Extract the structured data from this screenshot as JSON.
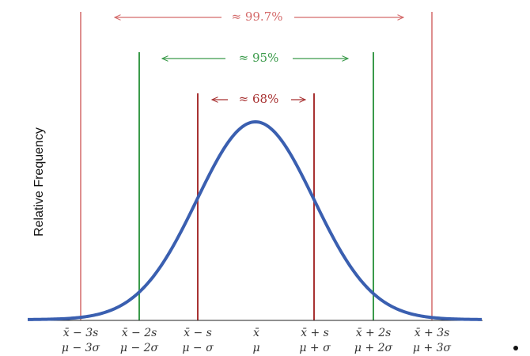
{
  "annotations": {
    "three": "≈ 99.7%",
    "two": "≈ 95%",
    "one": "≈ 68%"
  },
  "y_axis_label": "Relative Frequency",
  "x_labels": [
    {
      "sample": "x̄ − 3s",
      "population": "μ − 3σ"
    },
    {
      "sample": "x̄ − 2s",
      "population": "μ − 2σ"
    },
    {
      "sample": "x̄ − s",
      "population": "μ − σ"
    },
    {
      "sample": "x̄",
      "population": "μ"
    },
    {
      "sample": "x̄ + s",
      "population": "μ + σ"
    },
    {
      "sample": "x̄ + 2s",
      "population": "μ + 2σ"
    },
    {
      "sample": "x̄ + 3s",
      "population": "μ + 3σ"
    }
  ]
}
